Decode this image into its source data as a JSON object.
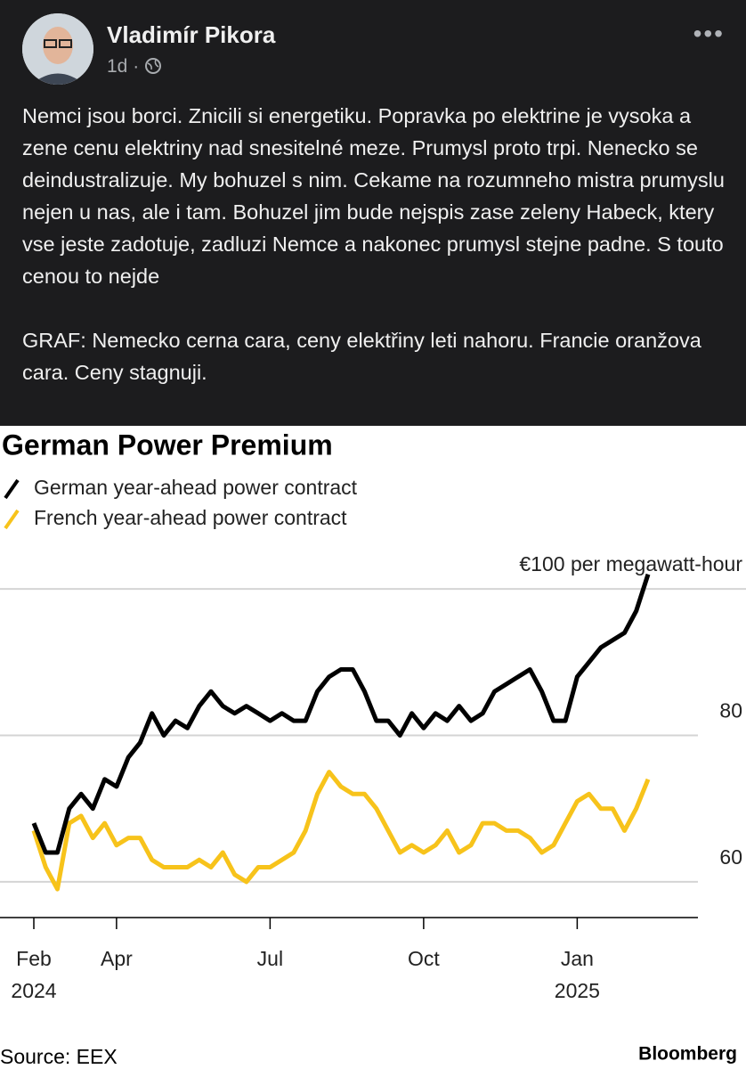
{
  "post": {
    "author": "Vladimír Pikora",
    "time": "1d",
    "paragraphs": [
      "Nemci jsou borci. Znicili si energetiku. Popravka po elektrine je vysoka a zene cenu elektriny nad snesitelné meze. Prumysl proto trpi. Nenecko se deindustralizuje. My bohuzel s nim. Cekame na rozumneho mistra prumyslu nejen u nas, ale i tam. Bohuzel jim bude nejspis zase zeleny Habeck, ktery vse jeste zadotuje, zadluzi Nemce a nakonec prumysl stejne padne. S touto cenou to nejde",
      "GRAF: Nemecko cerna cara, ceny elektřiny leti nahoru. Francie oranžova cara. Ceny stagnuji."
    ]
  },
  "chart_data": {
    "type": "line",
    "title": "German Power Premium",
    "categories": [
      "Feb 2024",
      null,
      null,
      null,
      null,
      null,
      null,
      "Apr",
      null,
      null,
      null,
      null,
      null,
      null,
      null,
      null,
      null,
      null,
      null,
      null,
      "Jul",
      null,
      null,
      null,
      null,
      null,
      null,
      null,
      null,
      null,
      null,
      null,
      null,
      "Oct",
      null,
      null,
      null,
      null,
      null,
      null,
      null,
      null,
      null,
      null,
      null,
      null,
      "Jan 2025",
      null,
      null,
      null,
      null,
      null,
      null
    ],
    "series": [
      {
        "name": "German year-ahead power contract",
        "color": "#000000",
        "values": [
          68,
          64,
          64,
          70,
          72,
          70,
          74,
          73,
          77,
          79,
          83,
          80,
          82,
          81,
          84,
          86,
          84,
          83,
          84,
          83,
          82,
          83,
          82,
          82,
          86,
          88,
          89,
          89,
          86,
          82,
          82,
          80,
          83,
          81,
          83,
          82,
          84,
          82,
          83,
          86,
          87,
          88,
          89,
          86,
          82,
          82,
          88,
          90,
          92,
          93,
          94,
          97,
          102
        ]
      },
      {
        "name": "French year-ahead power contract",
        "color": "#f7c31b",
        "values": [
          67,
          62,
          59,
          68,
          69,
          66,
          68,
          65,
          66,
          66,
          63,
          62,
          62,
          62,
          63,
          62,
          64,
          61,
          60,
          62,
          62,
          63,
          64,
          67,
          72,
          75,
          73,
          72,
          72,
          70,
          67,
          64,
          65,
          64,
          65,
          67,
          64,
          65,
          68,
          68,
          67,
          67,
          66,
          64,
          65,
          68,
          71,
          72,
          70,
          70,
          67,
          70,
          74
        ]
      }
    ],
    "ylim": [
      55,
      105
    ],
    "yticks": [
      60,
      80,
      {
        "value": 100,
        "label": "€100 per megawatt-hour"
      }
    ],
    "grid": true,
    "source": "Source: EEX",
    "brand": "Bloomberg"
  }
}
